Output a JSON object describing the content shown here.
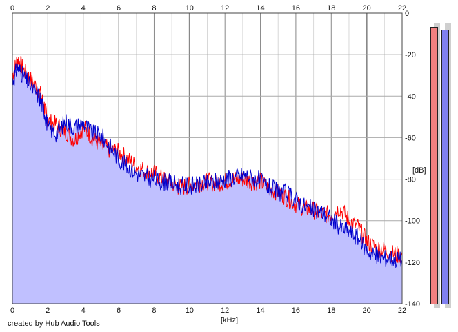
{
  "footer": {
    "credit": "created by Hub Audio Tools"
  },
  "axes": {
    "x_unit": "[kHz]",
    "y_unit": "[dB]",
    "x_ticks": [
      "0",
      "2",
      "4",
      "6",
      "8",
      "10",
      "12",
      "14",
      "16",
      "18",
      "20",
      "22"
    ],
    "y_ticks": [
      "0",
      "-20",
      "-40",
      "-60",
      "-80",
      "-100",
      "-120",
      "-140"
    ]
  },
  "chart_data": {
    "type": "line",
    "xlabel": "[kHz]",
    "ylabel": "[dB]",
    "xlim": [
      0,
      22
    ],
    "ylim": [
      -140,
      0
    ],
    "grid": true,
    "area_fill": "#c0c0ff",
    "series": [
      {
        "color": "#ff0000",
        "x": [
          0,
          0.3,
          0.6,
          1,
          1.5,
          1.8,
          2,
          2.5,
          3,
          3.5,
          4,
          4.5,
          5,
          5.5,
          6,
          6.5,
          7,
          7.5,
          8,
          8.5,
          9,
          9.5,
          10,
          10.5,
          11,
          11.5,
          12,
          12.5,
          13,
          13.5,
          14,
          14.5,
          15,
          15.5,
          16,
          16.5,
          17,
          17.5,
          18,
          18.5,
          19,
          19.5,
          20,
          20.5,
          21,
          21.5,
          22
        ],
        "y": [
          -30,
          -22,
          -27,
          -32,
          -37,
          -45,
          -52,
          -54,
          -57,
          -61,
          -55,
          -60,
          -64,
          -66,
          -67,
          -70,
          -74,
          -76,
          -77,
          -80,
          -82,
          -84,
          -83,
          -82,
          -81,
          -82,
          -81,
          -80,
          -80,
          -81,
          -81,
          -85,
          -86,
          -89,
          -92,
          -94,
          -95,
          -97,
          -97,
          -94,
          -100,
          -103,
          -110,
          -113,
          -114,
          -116,
          -117
        ]
      },
      {
        "color": "#0000cc",
        "x": [
          0,
          0.3,
          0.6,
          1,
          1.5,
          1.8,
          2,
          2.5,
          3,
          3.5,
          4,
          4.5,
          5,
          5.5,
          6,
          6.5,
          7,
          7.5,
          8,
          8.5,
          9,
          9.5,
          10,
          10.5,
          11,
          11.5,
          12,
          12.5,
          13,
          13.5,
          14,
          14.5,
          15,
          15.5,
          16,
          16.5,
          17,
          17.5,
          18,
          18.5,
          19,
          19.5,
          20,
          20.5,
          21,
          21.5,
          22
        ],
        "y": [
          -33,
          -26,
          -30,
          -35,
          -40,
          -47,
          -55,
          -58,
          -52,
          -55,
          -53,
          -58,
          -59,
          -64,
          -70,
          -74,
          -77,
          -79,
          -80,
          -81,
          -82,
          -83,
          -83,
          -83,
          -82,
          -81,
          -80,
          -79,
          -78,
          -79,
          -81,
          -84,
          -86,
          -87,
          -90,
          -93,
          -95,
          -96,
          -99,
          -103,
          -105,
          -108,
          -114,
          -117,
          -118,
          -118,
          -119
        ]
      }
    ]
  },
  "meters": {
    "left_color": "#f08080",
    "right_color": "#8080f0",
    "left_level": 0.97,
    "right_level": 0.96
  }
}
